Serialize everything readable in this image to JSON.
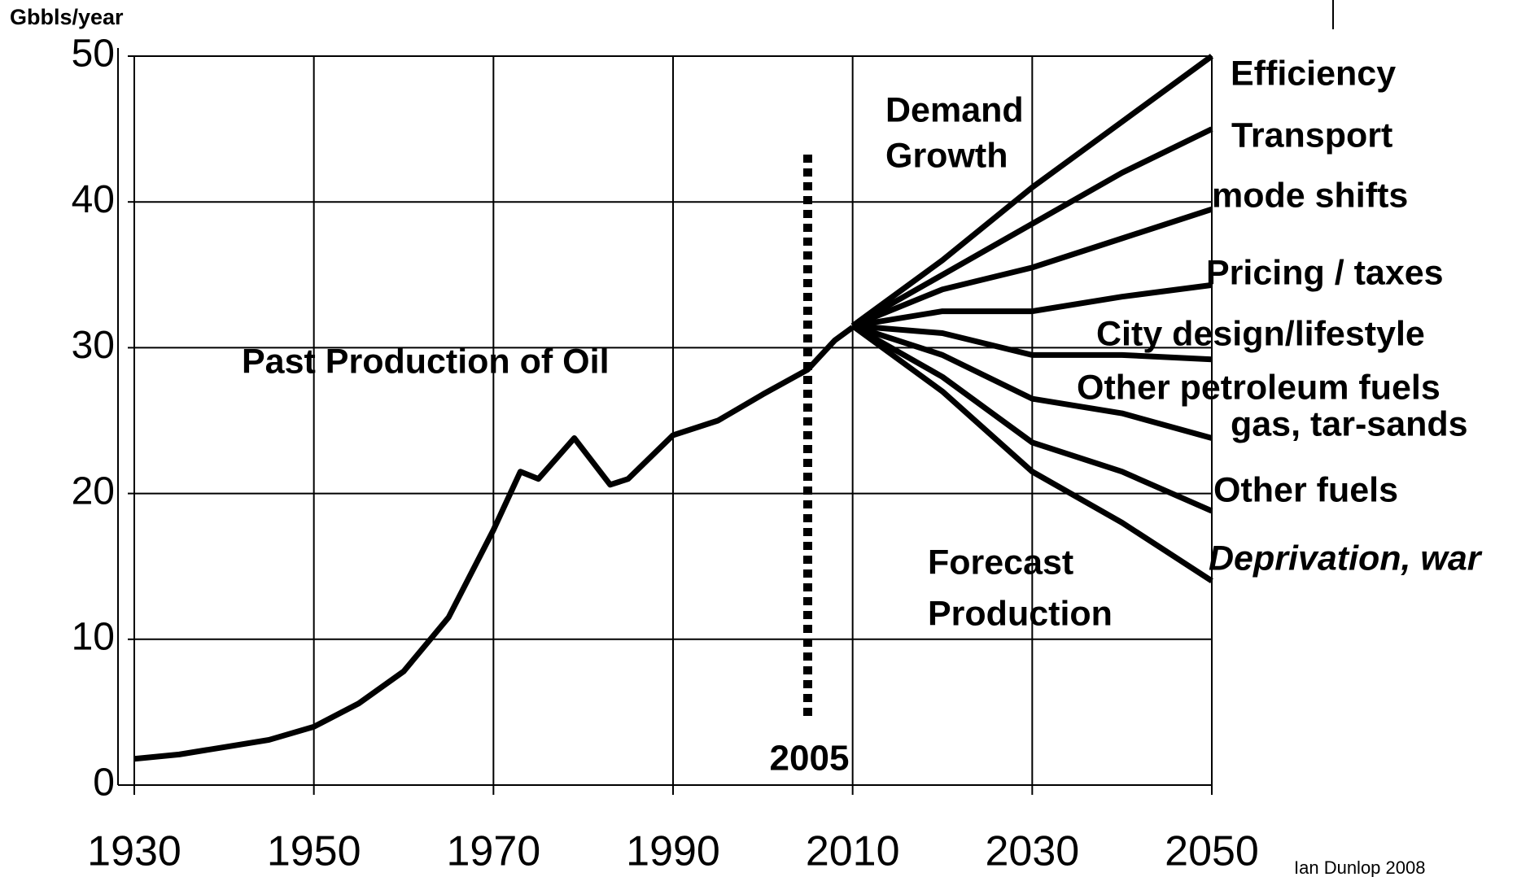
{
  "chart_data": {
    "type": "line",
    "y_label": "Gbbls/year",
    "xlim": [
      1930,
      2050
    ],
    "ylim": [
      0,
      50
    ],
    "xticks": [
      1930,
      1950,
      1970,
      1990,
      2010,
      2030,
      2050
    ],
    "yticks": [
      0,
      10,
      20,
      30,
      40,
      50
    ],
    "grid": true,
    "color": "#000000",
    "reference_line": 2005,
    "annotations": [
      [
        "Past Production of  Oil"
      ],
      [
        "Demand",
        "Growth"
      ],
      [
        "Forecast",
        "Production"
      ]
    ],
    "credit": "Ian Dunlop 2008",
    "past": {
      "x": [
        1930,
        1935,
        1940,
        1945,
        1950,
        1955,
        1960,
        1965,
        1970,
        1973,
        1975,
        1979,
        1983,
        1985,
        1990,
        1995,
        2000,
        2005,
        2008,
        2010
      ],
      "values": [
        1.8,
        2.1,
        2.6,
        3.1,
        4.0,
        5.6,
        7.8,
        11.5,
        17.5,
        21.5,
        21.0,
        23.8,
        20.6,
        21.0,
        24.0,
        25.0,
        26.8,
        28.5,
        30.5,
        31.4
      ]
    },
    "forecast_x": [
      2010,
      2020,
      2030,
      2040,
      2050
    ],
    "series": [
      {
        "name": [
          "Efficiency"
        ],
        "values": [
          31.5,
          36,
          41,
          45.5,
          50
        ]
      },
      {
        "name": [
          "Transport"
        ],
        "values": [
          31.5,
          35,
          38.5,
          42,
          45
        ]
      },
      {
        "name": [
          "mode shifts"
        ],
        "values": [
          31.5,
          34,
          35.5,
          37.5,
          39.5
        ]
      },
      {
        "name": [
          "Pricing / taxes"
        ],
        "values": [
          31.5,
          32.5,
          32.5,
          33.5,
          34.3
        ]
      },
      {
        "name": [
          "City design/lifestyle"
        ],
        "values": [
          31.5,
          31,
          29.5,
          29.5,
          29.2
        ]
      },
      {
        "name": [
          "Other petroleum fuels",
          "gas, tar-sands"
        ],
        "values": [
          31.5,
          29.5,
          26.5,
          25.5,
          23.8
        ]
      },
      {
        "name": [
          "Other fuels"
        ],
        "values": [
          31.5,
          28,
          23.5,
          21.5,
          18.8
        ]
      },
      {
        "name": [
          "Deprivation, war"
        ],
        "values": [
          31.5,
          27,
          21.5,
          18,
          14
        ]
      }
    ]
  }
}
